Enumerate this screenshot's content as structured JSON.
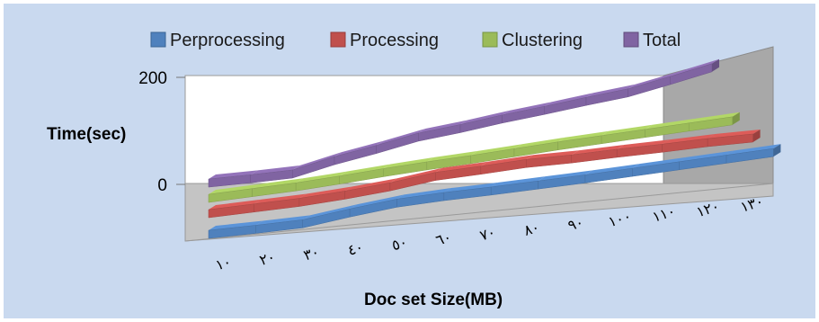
{
  "chart_data": {
    "type": "line",
    "style": "3d-ribbon",
    "categories": [
      "١٠",
      "٢٠",
      "٣٠",
      "٤٠",
      "٥٠",
      "٦٠",
      "٧٠",
      "٨٠",
      "٩٠",
      "١٠٠",
      "١١٠",
      "١٢٠",
      "١٣٠"
    ],
    "xlabel": "Doc set Size(MB)",
    "ylabel": "Time(sec)",
    "ylim": [
      0,
      200
    ],
    "yticks": [
      "0",
      "200"
    ],
    "legend_position": "top",
    "grid": false,
    "series": [
      {
        "name": "Perprocessing",
        "color": "#4f81bd",
        "values": [
          5,
          10,
          16,
          32,
          46,
          54,
          60,
          67,
          74,
          82,
          90,
          98,
          106
        ]
      },
      {
        "name": "Processing",
        "color": "#c0504d",
        "values": [
          10,
          17,
          24,
          34,
          46,
          62,
          70,
          79,
          84,
          91,
          97,
          104,
          109
        ]
      },
      {
        "name": "Clustering",
        "color": "#9bbb59",
        "values": [
          10,
          18,
          26,
          36,
          47,
          57,
          66,
          76,
          86,
          95,
          104,
          113,
          122
        ]
      },
      {
        "name": "Total",
        "color": "#8064a2",
        "values": [
          10,
          16,
          23,
          46,
          65,
          86,
          100,
          116,
          130,
          145,
          159,
          180,
          202
        ]
      }
    ]
  }
}
